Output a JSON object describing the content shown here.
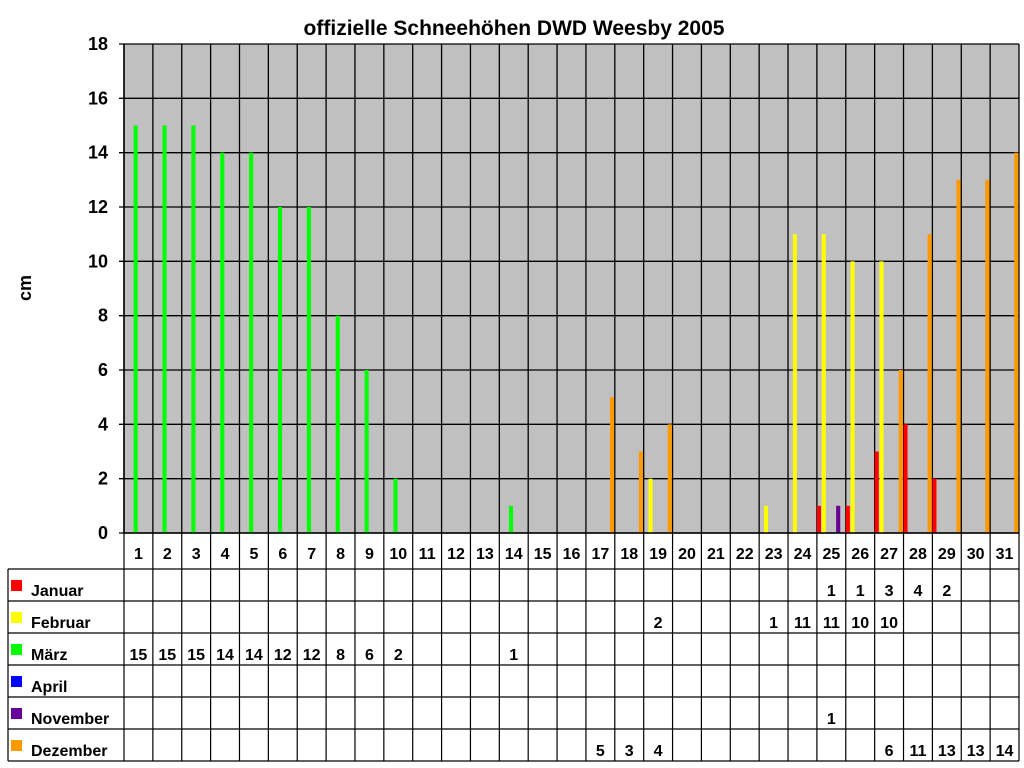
{
  "chart_data": {
    "type": "bar",
    "title": "offizielle Schneehöhen DWD Weesby 2005",
    "xlabel": "",
    "ylabel": "cm",
    "ylim": [
      0,
      18
    ],
    "yticks": [
      "0",
      "2",
      "4",
      "6",
      "8",
      "10",
      "12",
      "14",
      "16",
      "18"
    ],
    "grid": true,
    "legend_placement": "table-left",
    "categories": [
      "1",
      "2",
      "3",
      "4",
      "5",
      "6",
      "7",
      "8",
      "9",
      "10",
      "11",
      "12",
      "13",
      "14",
      "15",
      "16",
      "17",
      "18",
      "19",
      "20",
      "21",
      "22",
      "23",
      "24",
      "25",
      "26",
      "27",
      "28",
      "29",
      "30",
      "31"
    ],
    "series": [
      {
        "name": "Januar",
        "color": "#ff0000",
        "values": [
          null,
          null,
          null,
          null,
          null,
          null,
          null,
          null,
          null,
          null,
          null,
          null,
          null,
          null,
          null,
          null,
          null,
          null,
          null,
          null,
          null,
          null,
          null,
          null,
          1,
          1,
          3,
          4,
          2,
          null,
          null
        ]
      },
      {
        "name": "Februar",
        "color": "#ffff00",
        "values": [
          null,
          null,
          null,
          null,
          null,
          null,
          null,
          null,
          null,
          null,
          null,
          null,
          null,
          null,
          null,
          null,
          null,
          null,
          2,
          null,
          null,
          null,
          1,
          11,
          11,
          10,
          10,
          null,
          null,
          null,
          null
        ]
      },
      {
        "name": "März",
        "color": "#00ff00",
        "values": [
          15,
          15,
          15,
          14,
          14,
          12,
          12,
          8,
          6,
          2,
          null,
          null,
          null,
          1,
          null,
          null,
          null,
          null,
          null,
          null,
          null,
          null,
          null,
          null,
          null,
          null,
          null,
          null,
          null,
          null,
          null
        ]
      },
      {
        "name": "April",
        "color": "#0000ff",
        "values": [
          null,
          null,
          null,
          null,
          null,
          null,
          null,
          null,
          null,
          null,
          null,
          null,
          null,
          null,
          null,
          null,
          null,
          null,
          null,
          null,
          null,
          null,
          null,
          null,
          null,
          null,
          null,
          null,
          null,
          null,
          null
        ]
      },
      {
        "name": "November",
        "color": "#660099",
        "values": [
          null,
          null,
          null,
          null,
          null,
          null,
          null,
          null,
          null,
          null,
          null,
          null,
          null,
          null,
          null,
          null,
          null,
          null,
          null,
          null,
          null,
          null,
          null,
          null,
          1,
          null,
          null,
          null,
          null,
          null,
          null
        ]
      },
      {
        "name": "Dezember",
        "color": "#ff9900",
        "values": [
          null,
          null,
          null,
          null,
          null,
          null,
          null,
          null,
          null,
          null,
          null,
          null,
          null,
          null,
          null,
          null,
          5,
          3,
          4,
          null,
          null,
          null,
          null,
          null,
          null,
          null,
          6,
          11,
          13,
          13,
          14
        ]
      }
    ]
  }
}
